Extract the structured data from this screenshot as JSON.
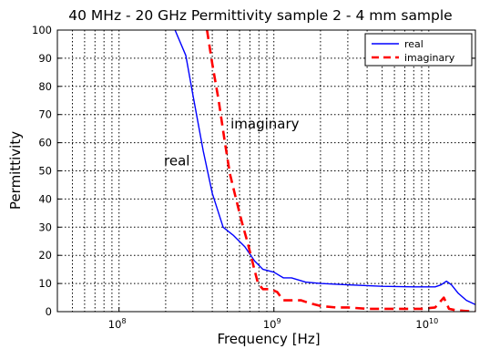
{
  "chart_data": {
    "type": "line",
    "title": "40 MHz - 20 GHz   Permittivity sample 2 - 4 mm sample",
    "xlabel": "Frequency [Hz]",
    "ylabel": "Permittivity",
    "xscale": "log",
    "xlim": [
      40000000,
      20000000000
    ],
    "ylim": [
      0,
      100
    ],
    "yticks": [
      0,
      10,
      20,
      30,
      40,
      50,
      60,
      70,
      80,
      90,
      100
    ],
    "ytick_labels": [
      "0",
      "10",
      "20",
      "30",
      "40",
      "50",
      "60",
      "70",
      "80",
      "90",
      "100"
    ],
    "xtick_labels": [
      {
        "value": 100000000,
        "base": "10",
        "exp": "8"
      },
      {
        "value": 1000000000,
        "base": "10",
        "exp": "9"
      },
      {
        "value": 10000000000,
        "base": "10",
        "exp": "10"
      }
    ],
    "grid": true,
    "legend": "top-right",
    "series": [
      {
        "name": "real",
        "color": "#0000ff",
        "dash": "solid",
        "points": [
          [
            230000000,
            100
          ],
          [
            270000000,
            91
          ],
          [
            300000000,
            77
          ],
          [
            350000000,
            57
          ],
          [
            400000000,
            42
          ],
          [
            470000000,
            30
          ],
          [
            550000000,
            27
          ],
          [
            650000000,
            23
          ],
          [
            750000000,
            18
          ],
          [
            850000000,
            15
          ],
          [
            1000000000,
            14
          ],
          [
            1150000000,
            12
          ],
          [
            1300000000,
            12
          ],
          [
            1600000000,
            10.5
          ],
          [
            2000000000,
            10
          ],
          [
            3000000000,
            9.5
          ],
          [
            5000000000,
            9
          ],
          [
            8000000000,
            8.8
          ],
          [
            11000000000,
            8.8
          ],
          [
            12000000000,
            9.5
          ],
          [
            13000000000,
            10.8
          ],
          [
            14000000000,
            9.5
          ],
          [
            15500000000,
            6.5
          ],
          [
            17500000000,
            4
          ],
          [
            20000000000,
            2.5
          ]
        ]
      },
      {
        "name": "imaginary",
        "color": "#ff0000",
        "dash": "dashed",
        "points": [
          [
            370000000,
            100
          ],
          [
            400000000,
            88
          ],
          [
            440000000,
            75
          ],
          [
            480000000,
            61
          ],
          [
            520000000,
            49
          ],
          [
            570000000,
            40
          ],
          [
            620000000,
            32
          ],
          [
            680000000,
            24
          ],
          [
            740000000,
            16
          ],
          [
            790000000,
            10
          ],
          [
            850000000,
            8
          ],
          [
            950000000,
            8
          ],
          [
            1050000000,
            7
          ],
          [
            1150000000,
            4
          ],
          [
            1300000000,
            4
          ],
          [
            1500000000,
            4
          ],
          [
            1700000000,
            3
          ],
          [
            2000000000,
            2
          ],
          [
            2500000000,
            1.5
          ],
          [
            3000000000,
            1.5
          ],
          [
            4000000000,
            1
          ],
          [
            6000000000,
            1
          ],
          [
            9000000000,
            1
          ],
          [
            11000000000,
            1.5
          ],
          [
            12500000000,
            5
          ],
          [
            13500000000,
            1
          ],
          [
            15000000000,
            0.5
          ],
          [
            20000000000,
            0
          ]
        ]
      }
    ],
    "annotations": [
      {
        "text": "real",
        "x": 195000000,
        "y": 52
      },
      {
        "text": "imaginary",
        "x": 525000000,
        "y": 65
      }
    ]
  }
}
